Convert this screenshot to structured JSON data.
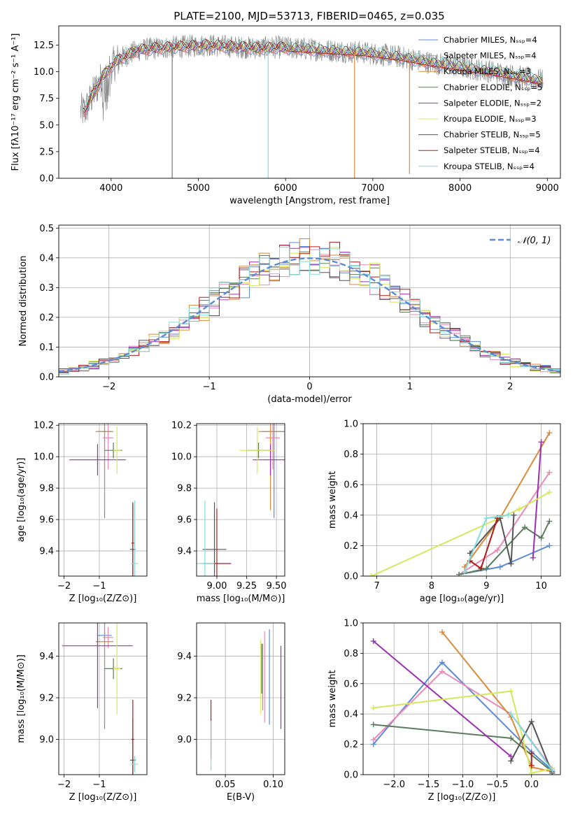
{
  "title": "PLATE=2100, MJD=53713, FIBERID=0465, z=0.035",
  "colors": [
    "#5b8bd6",
    "#e88ab8",
    "#d98a3a",
    "#5c7d5c",
    "#9b30b0",
    "#d4e85a",
    "#555555",
    "#b31b1b",
    "#7fdddd"
  ],
  "chart_data": [
    {
      "id": "spectrum",
      "type": "line",
      "xlabel": "wavelength [Angstrom, rest frame]",
      "ylabel": "Flux [fλ10⁻¹⁷ erg cm⁻² s⁻¹ A⁻¹]",
      "xlim": [
        3400,
        9150
      ],
      "ylim": [
        0,
        14.3
      ],
      "xticks": [
        4000,
        5000,
        6000,
        7000,
        8000,
        9000
      ],
      "yticks": [
        0.0,
        2.5,
        5.0,
        7.5,
        10.0,
        12.5
      ],
      "legend_position": "top-right",
      "series": [
        {
          "name": "Chabrier MILES, Nₛₛₚ=4",
          "color": "#5b8bd6"
        },
        {
          "name": "Salpeter MILES, Nₛₛₚ=4",
          "color": "#e88ab8"
        },
        {
          "name": "Kroupa MILES, Nₛₛₚ=3",
          "color": "#d98a3a"
        },
        {
          "name": "Chabrier ELODIE, Nₛₛₚ=5",
          "color": "#5c7d5c"
        },
        {
          "name": "Salpeter ELODIE, Nₛₛₚ=2",
          "color": "#9b30b0"
        },
        {
          "name": "Kroupa ELODIE, Nₛₛₚ=3",
          "color": "#d4e85a"
        },
        {
          "name": "Chabrier STELIB, Nₛₛₚ=5",
          "color": "#555555"
        },
        {
          "name": "Salpeter STELIB, Nₛₛₚ=4",
          "color": "#b31b1b"
        },
        {
          "name": "Kroupa STELIB, Nₛₛₚ=4",
          "color": "#7fdddd"
        }
      ],
      "continuum": {
        "x": [
          3700,
          3800,
          3900,
          4000,
          4100,
          4300,
          4500,
          4700,
          4900,
          5100,
          5300,
          5500,
          5700,
          5900,
          6100,
          6300,
          6500,
          6700,
          6900,
          7100,
          7300,
          7500,
          7700,
          7900,
          8100,
          8300,
          8500,
          8700,
          8900
        ],
        "y": [
          6.3,
          8.0,
          9.5,
          10.5,
          11.2,
          12.0,
          12.2,
          12.3,
          12.4,
          12.5,
          12.4,
          12.3,
          12.2,
          12.3,
          12.2,
          12.1,
          12.0,
          11.9,
          11.8,
          11.6,
          11.4,
          11.1,
          10.8,
          10.6,
          10.3,
          10.1,
          9.8,
          9.5,
          9.2
        ]
      },
      "spikes": [
        {
          "x": 4700,
          "y": 0
        },
        {
          "x": 5800,
          "y": 0
        },
        {
          "x": 6790,
          "y": 0
        },
        {
          "x": 7420,
          "y": 0.4
        }
      ]
    },
    {
      "id": "residuals",
      "type": "line",
      "xlabel": "(data-model)/error",
      "ylabel": "Normed distribution",
      "xlim": [
        -2.5,
        2.5
      ],
      "ylim": [
        0,
        0.51
      ],
      "xticks": [
        -2,
        -1,
        0,
        1,
        2
      ],
      "yticks": [
        0.0,
        0.1,
        0.2,
        0.3,
        0.4,
        0.5
      ],
      "legend": "𝒩(0, 1)",
      "legend_position": "top-right",
      "normal_curve": {
        "mean": 0,
        "sigma": 1
      }
    },
    {
      "id": "age-vs-Z",
      "type": "scatter",
      "xlabel": "Z [log₁₀(Z/Z⊙)]",
      "ylabel": "age  [log₁₀(age/yr)]",
      "xlim": [
        -2.15,
        0.35
      ],
      "ylim": [
        9.24,
        10.21
      ],
      "xticks": [
        -2,
        -1
      ],
      "yticks": [
        9.4,
        9.6,
        9.8,
        10.0,
        10.2
      ],
      "points": [
        {
          "x": -0.85,
          "y": 10.16,
          "xerr": 0.2,
          "yerr": 0.55,
          "c": 0
        },
        {
          "x": -0.75,
          "y": 10.12,
          "xerr": 0.15,
          "yerr": 0.2,
          "c": 1
        },
        {
          "x": -0.85,
          "y": 10.16,
          "xerr": 0.25,
          "yerr": 0.5,
          "c": 2
        },
        {
          "x": -0.6,
          "y": 10.04,
          "xerr": 0.25,
          "yerr": 0.05,
          "c": 3
        },
        {
          "x": -1.05,
          "y": 9.98,
          "xerr": 0.8,
          "yerr": 0.1,
          "c": 4
        },
        {
          "x": -0.5,
          "y": 10.04,
          "xerr": 0.1,
          "yerr": 0.15,
          "c": 5
        },
        {
          "x": -0.05,
          "y": 9.41,
          "xerr": 0.08,
          "yerr": 0.3,
          "c": 6
        },
        {
          "x": -0.05,
          "y": 9.45,
          "xerr": 0.04,
          "yerr": 0.25,
          "c": 7
        },
        {
          "x": 0.0,
          "y": 9.32,
          "xerr": 0.1,
          "yerr": 0.4,
          "c": 8
        }
      ]
    },
    {
      "id": "age-vs-mass",
      "type": "scatter",
      "xlabel": "mass [log₁₀(M/M⊙)]",
      "ylabel": "",
      "xlim": [
        8.83,
        9.57
      ],
      "ylim": [
        9.24,
        10.21
      ],
      "xticks": [
        9.0,
        9.25,
        9.5
      ],
      "yticks": [
        9.4,
        9.6,
        9.8,
        10.0,
        10.2
      ],
      "points": [
        {
          "x": 9.48,
          "y": 10.16,
          "xerr": 0.1,
          "yerr": 0.55,
          "c": 0
        },
        {
          "x": 9.47,
          "y": 10.12,
          "xerr": 0.06,
          "yerr": 0.2,
          "c": 1
        },
        {
          "x": 9.45,
          "y": 10.16,
          "xerr": 0.1,
          "yerr": 0.5,
          "c": 2
        },
        {
          "x": 9.35,
          "y": 10.04,
          "xerr": 0.1,
          "yerr": 0.05,
          "c": 3
        },
        {
          "x": 9.45,
          "y": 9.98,
          "xerr": 0.15,
          "yerr": 0.1,
          "c": 4
        },
        {
          "x": 9.34,
          "y": 10.04,
          "xerr": 0.15,
          "yerr": 0.15,
          "c": 5
        },
        {
          "x": 8.98,
          "y": 9.41,
          "xerr": 0.1,
          "yerr": 0.3,
          "c": 6
        },
        {
          "x": 9.0,
          "y": 9.32,
          "xerr": 0.12,
          "yerr": 0.35,
          "c": 7
        },
        {
          "x": 8.9,
          "y": 9.32,
          "xerr": 0.08,
          "yerr": 0.4,
          "c": 8
        }
      ]
    },
    {
      "id": "weight-vs-age",
      "type": "line",
      "xlabel": "age  [log₁₀(age/yr)]",
      "ylabel": "mass weight",
      "xlim": [
        6.75,
        10.35
      ],
      "ylim": [
        0,
        1.0
      ],
      "xticks": [
        7,
        8,
        9,
        10
      ],
      "yticks": [
        0.0,
        0.2,
        0.4,
        0.6,
        0.8,
        1.0
      ],
      "series": [
        {
          "c": 0,
          "x": [
            8.5,
            9.25,
            10.15
          ],
          "y": [
            0.01,
            0.06,
            0.2
          ]
        },
        {
          "c": 1,
          "x": [
            8.5,
            9.2,
            10.15
          ],
          "y": [
            0.01,
            0.17,
            0.68
          ]
        },
        {
          "c": 2,
          "x": [
            8.6,
            9.25,
            10.15
          ],
          "y": [
            0.06,
            0.38,
            0.94
          ]
        },
        {
          "c": 3,
          "x": [
            8.5,
            9.0,
            9.7,
            10.0,
            10.15
          ],
          "y": [
            0.01,
            0.05,
            0.32,
            0.25,
            0.36
          ]
        },
        {
          "c": 4,
          "x": [
            9.85,
            10.0
          ],
          "y": [
            0.12,
            0.88
          ]
        },
        {
          "c": 5,
          "x": [
            6.9,
            9.6,
            10.15
          ],
          "y": [
            0.0,
            0.44,
            0.55
          ]
        },
        {
          "c": 6,
          "x": [
            8.7,
            9.25,
            9.45,
            9.5
          ],
          "y": [
            0.15,
            0.38,
            0.08,
            0.4
          ]
        },
        {
          "c": 7,
          "x": [
            8.7,
            8.9,
            9.2
          ],
          "y": [
            0.1,
            0.05,
            0.38
          ]
        },
        {
          "c": 8,
          "x": [
            8.6,
            9.0,
            9.4
          ],
          "y": [
            0.03,
            0.38,
            0.4
          ]
        }
      ]
    },
    {
      "id": "mass-vs-Z",
      "type": "scatter",
      "xlabel": "Z [log₁₀(Z/Z⊙)]",
      "ylabel": "mass [log₁₀(M/M⊙)]",
      "xlim": [
        -2.15,
        0.35
      ],
      "ylim": [
        8.83,
        9.56
      ],
      "xticks": [
        -2,
        -1
      ],
      "yticks": [
        9.0,
        9.2,
        9.4
      ],
      "points": [
        {
          "x": -0.85,
          "y": 9.5,
          "xerr": 0.2,
          "yerr": 0.45,
          "c": 0
        },
        {
          "x": -0.75,
          "y": 9.49,
          "xerr": 0.15,
          "yerr": 0.05,
          "c": 1
        },
        {
          "x": -0.85,
          "y": 9.47,
          "xerr": 0.25,
          "yerr": 0.4,
          "c": 2
        },
        {
          "x": -0.6,
          "y": 9.34,
          "xerr": 0.25,
          "yerr": 0.05,
          "c": 3
        },
        {
          "x": -1.05,
          "y": 9.45,
          "xerr": 1.0,
          "yerr": 0.3,
          "c": 4
        },
        {
          "x": -0.5,
          "y": 9.34,
          "xerr": 0.1,
          "yerr": 0.22,
          "c": 5
        },
        {
          "x": -0.05,
          "y": 8.9,
          "xerr": 0.08,
          "yerr": 0.2,
          "c": 6
        },
        {
          "x": -0.05,
          "y": 9.0,
          "xerr": 0.04,
          "yerr": 0.19,
          "c": 7
        },
        {
          "x": 0.0,
          "y": 8.88,
          "xerr": 0.1,
          "yerr": 0.04,
          "c": 8
        }
      ]
    },
    {
      "id": "mass-vs-EBV",
      "type": "scatter",
      "xlabel": "E(B-V)",
      "ylabel": "",
      "xlim": [
        0.02,
        0.112
      ],
      "ylim": [
        8.83,
        9.56
      ],
      "xticks": [
        0.05,
        0.1
      ],
      "yticks": [
        9.0,
        9.2,
        9.4
      ],
      "points": [
        {
          "x": 0.096,
          "y": 9.3,
          "yerr": 0.23,
          "c": 0
        },
        {
          "x": 0.091,
          "y": 9.3,
          "yerr": 0.22,
          "c": 1
        },
        {
          "x": 0.089,
          "y": 9.3,
          "yerr": 0.16,
          "c": 2
        },
        {
          "x": 0.088,
          "y": 9.34,
          "yerr": 0.12,
          "c": 3
        },
        {
          "x": 0.108,
          "y": 9.25,
          "yerr": 0.2,
          "c": 4
        },
        {
          "x": 0.087,
          "y": 9.3,
          "yerr": 0.18,
          "c": 5
        },
        {
          "x": 0.035,
          "y": 9.0,
          "yerr": 0.1,
          "c": 6
        },
        {
          "x": 0.035,
          "y": 9.05,
          "yerr": 0.14,
          "c": 7
        },
        {
          "x": 0.035,
          "y": 8.97,
          "yerr": 0.12,
          "c": 8
        }
      ]
    },
    {
      "id": "weight-vs-Z",
      "type": "line",
      "xlabel": "Z [log₁₀(Z/Z⊙)]",
      "ylabel": "mass weight",
      "xlim": [
        -2.45,
        0.42
      ],
      "ylim": [
        0,
        1.0
      ],
      "xticks": [
        -2.0,
        -1.5,
        -1.0,
        -0.5,
        0.0
      ],
      "yticks": [
        0.0,
        0.2,
        0.4,
        0.6,
        0.8,
        1.0
      ],
      "series": [
        {
          "c": 0,
          "x": [
            -2.3,
            -1.3,
            0.0,
            0.3
          ],
          "y": [
            0.2,
            0.74,
            0.15,
            0.03
          ]
        },
        {
          "c": 1,
          "x": [
            -2.3,
            -1.3,
            -0.3,
            0.3
          ],
          "y": [
            0.23,
            0.68,
            0.4,
            0.04
          ]
        },
        {
          "c": 2,
          "x": [
            -1.3,
            -0.3,
            0.0,
            0.3
          ],
          "y": [
            0.94,
            0.38,
            0.05,
            0.02
          ]
        },
        {
          "c": 3,
          "x": [
            -2.3,
            -0.3,
            0.3
          ],
          "y": [
            0.33,
            0.24,
            0.02
          ]
        },
        {
          "c": 4,
          "x": [
            -2.3,
            -0.3
          ],
          "y": [
            0.88,
            0.12
          ]
        },
        {
          "c": 5,
          "x": [
            -2.3,
            -0.3,
            0.0,
            0.3
          ],
          "y": [
            0.44,
            0.55,
            0.01,
            0.04
          ]
        },
        {
          "c": 6,
          "x": [
            -0.3,
            0.0,
            0.3
          ],
          "y": [
            0.09,
            0.35,
            0.01
          ]
        },
        {
          "c": 7,
          "x": [
            0.0,
            0.0
          ],
          "y": [
            0.06,
            0.14
          ]
        },
        {
          "c": 8,
          "x": [
            -0.3,
            0.3
          ],
          "y": [
            0.4,
            0.03
          ]
        }
      ]
    }
  ]
}
